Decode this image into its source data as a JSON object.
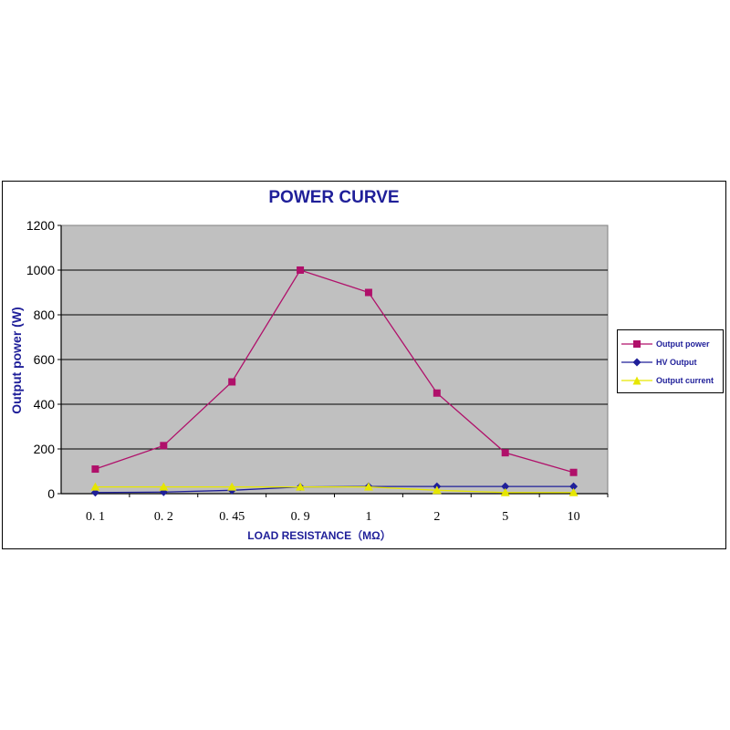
{
  "chart_data": {
    "type": "line",
    "title": "POWER CURVE",
    "xlabel": "LOAD RESISTANCE（MΩ）",
    "ylabel": "Output power (W)",
    "categories": [
      "0. 1",
      "0. 2",
      "0. 45",
      "0. 9",
      "1",
      "2",
      "5",
      "10"
    ],
    "ylim": [
      0,
      1200
    ],
    "yticks": [
      "0",
      "200",
      "400",
      "600",
      "800",
      "1000",
      "1200"
    ],
    "grid": "horizontal",
    "legend_position": "right",
    "series": [
      {
        "name": "Output power",
        "values": [
          110,
          215,
          500,
          1000,
          900,
          450,
          183,
          95
        ],
        "color": "#b0106a",
        "marker": "square"
      },
      {
        "name": "HV Output",
        "values": [
          5,
          7,
          15,
          30,
          32,
          32,
          32,
          32
        ],
        "color": "#1f1f99",
        "marker": "diamond"
      },
      {
        "name": "Output current",
        "values": [
          30,
          30,
          30,
          30,
          30,
          15,
          5,
          5
        ],
        "color": "#e6e600",
        "marker": "triangle"
      }
    ]
  }
}
